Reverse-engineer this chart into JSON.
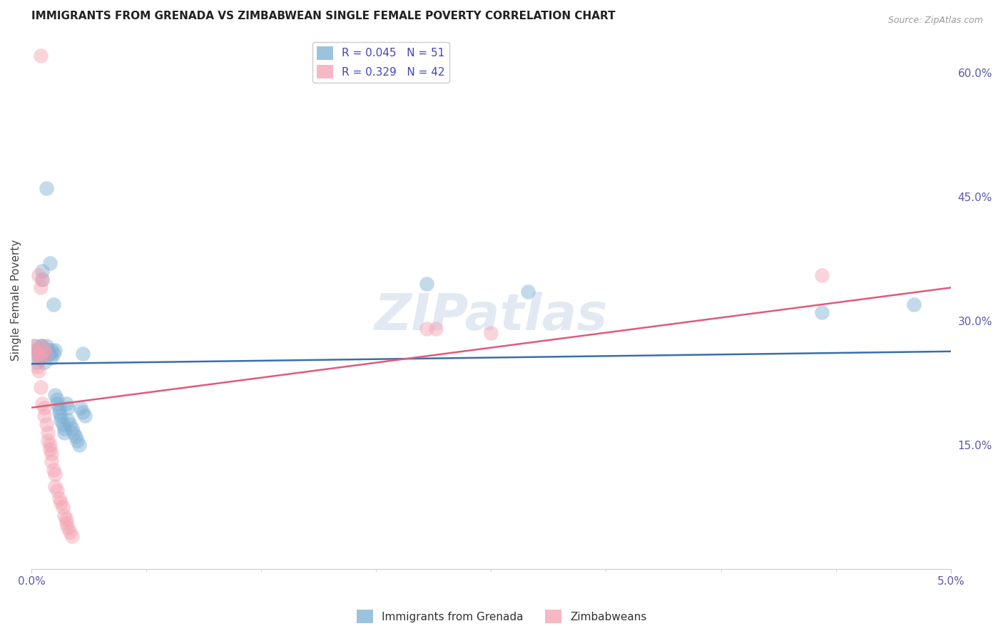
{
  "title": "IMMIGRANTS FROM GRENADA VS ZIMBABWEAN SINGLE FEMALE POVERTY CORRELATION CHART",
  "source": "Source: ZipAtlas.com",
  "ylabel_left": "Single Female Poverty",
  "legend_blue_r": "R = 0.045",
  "legend_blue_n": "N = 51",
  "legend_pink_r": "R = 0.329",
  "legend_pink_n": "N = 42",
  "legend_blue_label": "Immigrants from Grenada",
  "legend_pink_label": "Zimbabweans",
  "xmin": 0.0,
  "xmax": 0.05,
  "ymin": 0.0,
  "ymax": 0.65,
  "right_yticks": [
    0.6,
    0.45,
    0.3,
    0.15
  ],
  "right_yticklabels": [
    "60.0%",
    "45.0%",
    "30.0%",
    "15.0%"
  ],
  "blue_color": "#7bafd4",
  "pink_color": "#f4a0b0",
  "blue_line_color": "#3a6eab",
  "pink_line_color": "#e05a7a",
  "blue_scatter": [
    [
      0.0002,
      0.27
    ],
    [
      0.0003,
      0.265
    ],
    [
      0.0003,
      0.25
    ],
    [
      0.0004,
      0.26
    ],
    [
      0.0004,
      0.255
    ],
    [
      0.0005,
      0.27
    ],
    [
      0.0005,
      0.255
    ],
    [
      0.0006,
      0.36
    ],
    [
      0.0006,
      0.35
    ],
    [
      0.0006,
      0.27
    ],
    [
      0.0007,
      0.265
    ],
    [
      0.0007,
      0.26
    ],
    [
      0.0007,
      0.25
    ],
    [
      0.0008,
      0.46
    ],
    [
      0.0008,
      0.27
    ],
    [
      0.0009,
      0.265
    ],
    [
      0.0009,
      0.26
    ],
    [
      0.001,
      0.37
    ],
    [
      0.001,
      0.26
    ],
    [
      0.0011,
      0.265
    ],
    [
      0.0011,
      0.255
    ],
    [
      0.0012,
      0.32
    ],
    [
      0.0012,
      0.26
    ],
    [
      0.0013,
      0.265
    ],
    [
      0.0013,
      0.21
    ],
    [
      0.0014,
      0.205
    ],
    [
      0.0014,
      0.2
    ],
    [
      0.0015,
      0.195
    ],
    [
      0.0015,
      0.19
    ],
    [
      0.0016,
      0.185
    ],
    [
      0.0016,
      0.18
    ],
    [
      0.0017,
      0.175
    ],
    [
      0.0018,
      0.17
    ],
    [
      0.0018,
      0.165
    ],
    [
      0.0019,
      0.2
    ],
    [
      0.002,
      0.195
    ],
    [
      0.002,
      0.18
    ],
    [
      0.0021,
      0.175
    ],
    [
      0.0022,
      0.17
    ],
    [
      0.0023,
      0.165
    ],
    [
      0.0024,
      0.16
    ],
    [
      0.0025,
      0.155
    ],
    [
      0.0026,
      0.15
    ],
    [
      0.0027,
      0.195
    ],
    [
      0.0028,
      0.19
    ],
    [
      0.0029,
      0.185
    ],
    [
      0.0215,
      0.345
    ],
    [
      0.027,
      0.335
    ],
    [
      0.0028,
      0.26
    ],
    [
      0.043,
      0.31
    ],
    [
      0.048,
      0.32
    ]
  ],
  "pink_scatter": [
    [
      0.0001,
      0.27
    ],
    [
      0.0002,
      0.265
    ],
    [
      0.0003,
      0.26
    ],
    [
      0.0003,
      0.245
    ],
    [
      0.0004,
      0.355
    ],
    [
      0.0004,
      0.26
    ],
    [
      0.0004,
      0.24
    ],
    [
      0.0005,
      0.34
    ],
    [
      0.0005,
      0.255
    ],
    [
      0.0005,
      0.22
    ],
    [
      0.0006,
      0.35
    ],
    [
      0.0006,
      0.27
    ],
    [
      0.0006,
      0.2
    ],
    [
      0.0007,
      0.265
    ],
    [
      0.0007,
      0.195
    ],
    [
      0.0007,
      0.185
    ],
    [
      0.0008,
      0.26
    ],
    [
      0.0008,
      0.175
    ],
    [
      0.0009,
      0.165
    ],
    [
      0.0009,
      0.155
    ],
    [
      0.001,
      0.15
    ],
    [
      0.001,
      0.145
    ],
    [
      0.0011,
      0.14
    ],
    [
      0.0011,
      0.13
    ],
    [
      0.0012,
      0.12
    ],
    [
      0.0013,
      0.115
    ],
    [
      0.0013,
      0.1
    ],
    [
      0.0014,
      0.095
    ],
    [
      0.0015,
      0.085
    ],
    [
      0.0016,
      0.08
    ],
    [
      0.0017,
      0.075
    ],
    [
      0.0018,
      0.065
    ],
    [
      0.0019,
      0.06
    ],
    [
      0.0019,
      0.055
    ],
    [
      0.002,
      0.05
    ],
    [
      0.0021,
      0.045
    ],
    [
      0.0022,
      0.04
    ],
    [
      0.0215,
      0.29
    ],
    [
      0.025,
      0.285
    ],
    [
      0.043,
      0.355
    ],
    [
      0.0005,
      0.62
    ],
    [
      0.022,
      0.29
    ]
  ],
  "blue_dot_size": 220,
  "pink_dot_size": 220,
  "blue_alpha": 0.45,
  "pink_alpha": 0.45,
  "watermark": "ZIPatlas",
  "background_color": "#ffffff",
  "grid_color": "#cccccc",
  "blue_line_x": [
    0.0,
    0.05
  ],
  "blue_line_y": [
    0.248,
    0.263
  ],
  "pink_line_x": [
    0.0,
    0.05
  ],
  "pink_line_y": [
    0.195,
    0.34
  ]
}
